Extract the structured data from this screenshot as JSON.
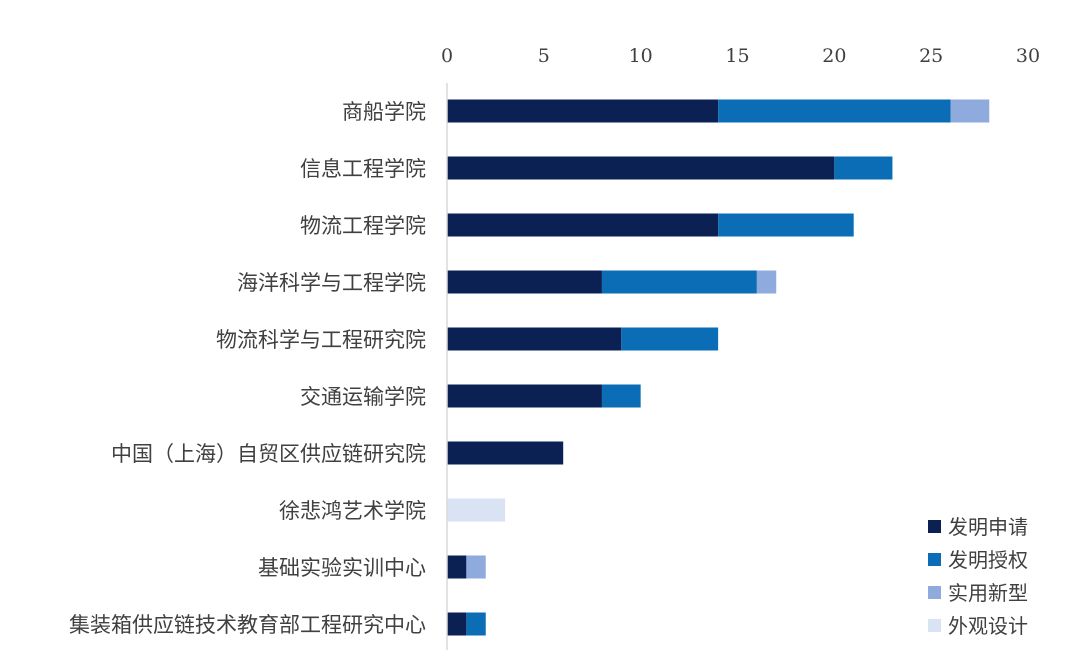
{
  "chart_data": {
    "type": "bar",
    "orientation": "horizontal",
    "stacked": true,
    "title": "",
    "xlabel": "",
    "ylabel": "",
    "xlim": [
      0,
      30
    ],
    "x_ticks": [
      0,
      5,
      10,
      15,
      20,
      25,
      30
    ],
    "x_axis_position": "top",
    "grid": false,
    "legend_position": "bottom-right",
    "categories": [
      "商船学院",
      "信息工程学院",
      "物流工程学院",
      "海洋科学与工程学院",
      "物流科学与工程研究院",
      "交通运输学院",
      "中国（上海）自贸区供应链研究院",
      "徐悲鸿艺术学院",
      "基础实验实训中心",
      "集装箱供应链技术教育部工程研究中心"
    ],
    "series": [
      {
        "name": "发明申请",
        "color": "#0b2154",
        "values": [
          14,
          20,
          14,
          8,
          9,
          8,
          6,
          0,
          1,
          1
        ]
      },
      {
        "name": "发明授权",
        "color": "#0b6db5",
        "values": [
          12,
          3,
          7,
          8,
          5,
          2,
          0,
          0,
          0,
          1
        ]
      },
      {
        "name": "实用新型",
        "color": "#8faadc",
        "values": [
          2,
          0,
          0,
          1,
          0,
          0,
          0,
          0,
          1,
          0
        ]
      },
      {
        "name": "外观设计",
        "color": "#dae3f3",
        "values": [
          0,
          0,
          0,
          0,
          0,
          0,
          0,
          3,
          0,
          0
        ]
      }
    ]
  }
}
